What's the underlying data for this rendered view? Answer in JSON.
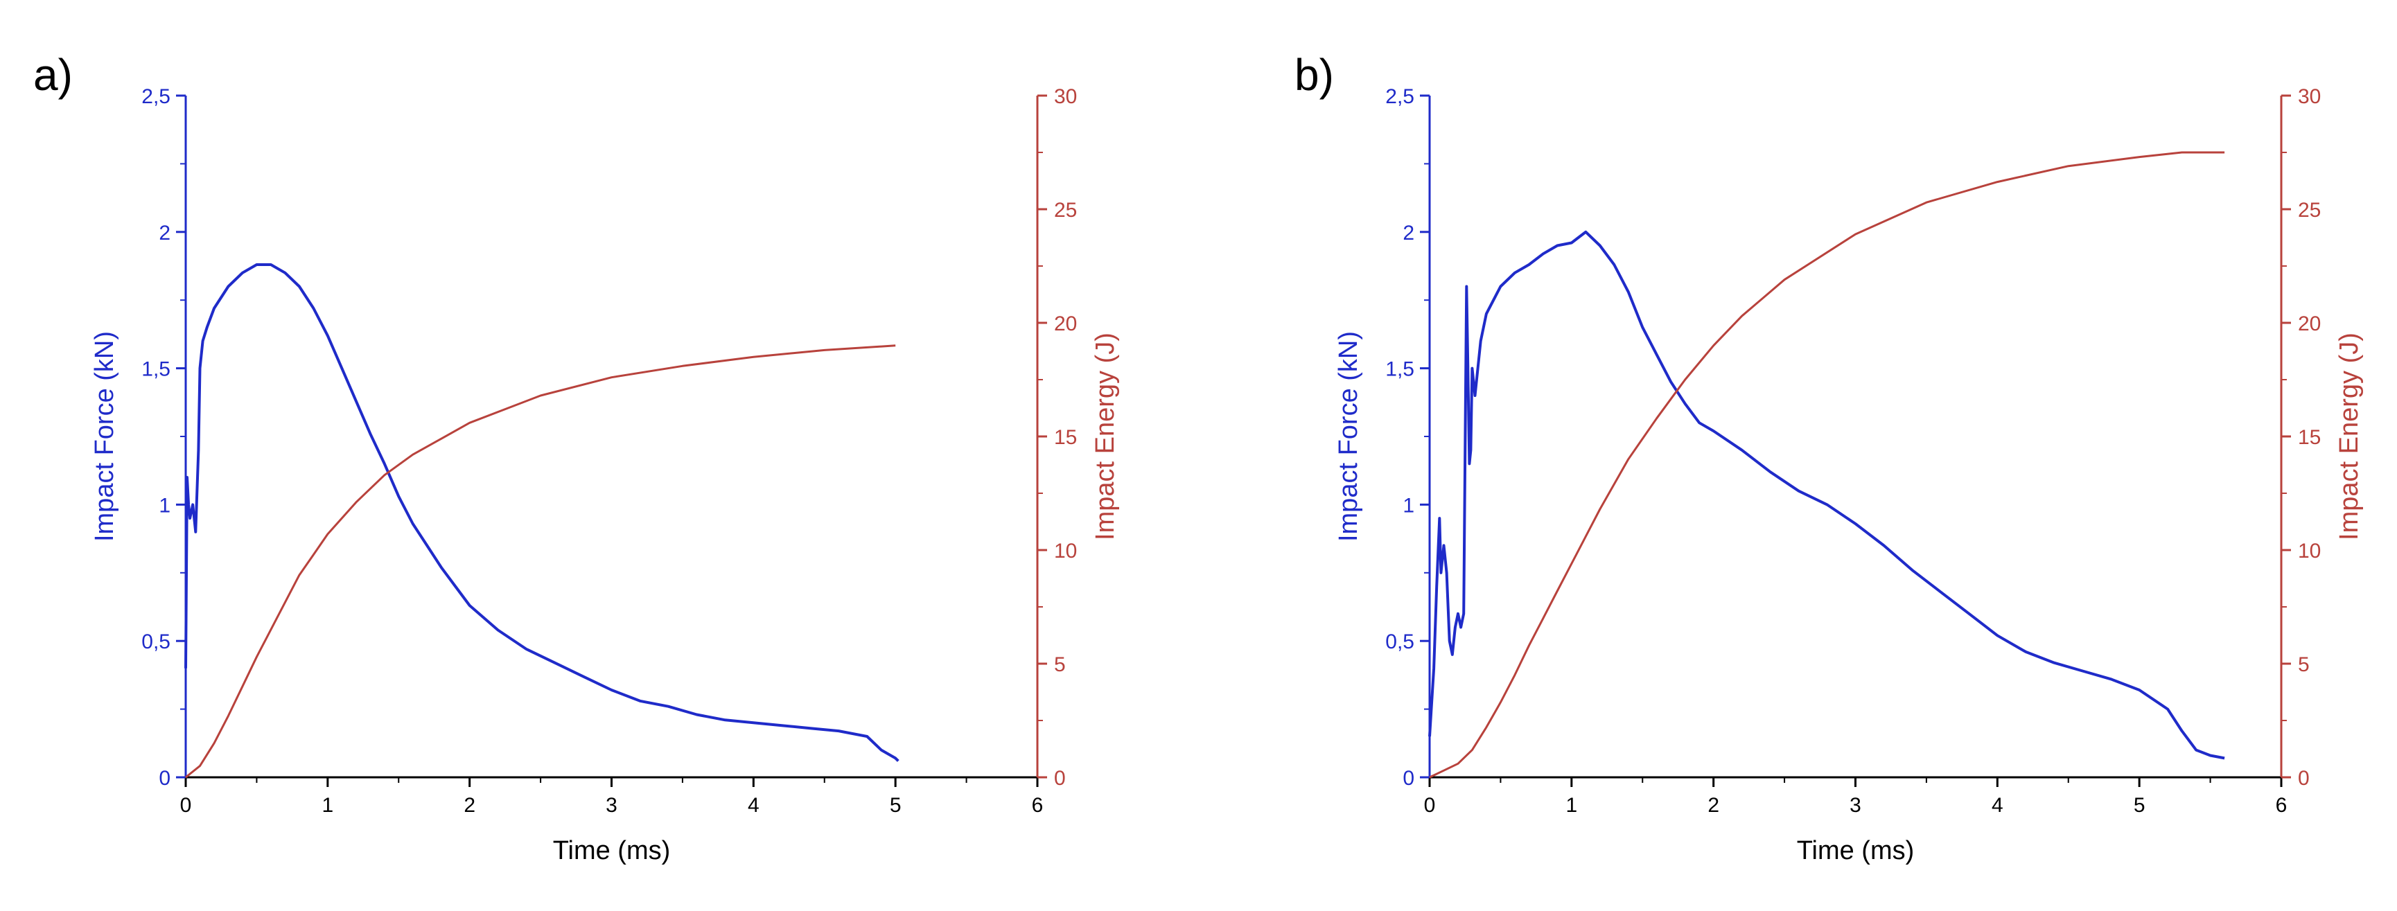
{
  "colors": {
    "force": "#1f2bc9",
    "energy": "#b8423c",
    "axis": "#000000"
  },
  "chart_data": [
    {
      "panel_label": "a)",
      "type": "line",
      "xlabel": "Time (ms)",
      "xlim": [
        0,
        6
      ],
      "x_ticks": [
        "0",
        "1",
        "2",
        "3",
        "4",
        "5",
        "6"
      ],
      "y_left_label": "Impact Force (kN)",
      "y_left_lim": [
        0,
        2.5
      ],
      "y_left_ticks": [
        "0",
        "0,5",
        "1",
        "1,5",
        "2",
        "2,5"
      ],
      "y_right_label": "Impact Energy (J)",
      "y_right_lim": [
        0,
        30
      ],
      "y_right_ticks": [
        "0",
        "5",
        "10",
        "15",
        "20",
        "25",
        "30"
      ],
      "series": [
        {
          "axis": "left",
          "color": "#1f2bc9",
          "x": [
            0,
            0.01,
            0.02,
            0.03,
            0.05,
            0.07,
            0.09,
            0.1,
            0.12,
            0.15,
            0.2,
            0.3,
            0.4,
            0.5,
            0.6,
            0.7,
            0.8,
            0.9,
            1.0,
            1.1,
            1.2,
            1.3,
            1.4,
            1.5,
            1.6,
            1.7,
            1.8,
            1.9,
            2.0,
            2.2,
            2.4,
            2.6,
            2.8,
            3.0,
            3.2,
            3.4,
            3.6,
            3.8,
            4.0,
            4.2,
            4.4,
            4.6,
            4.8,
            4.9,
            5.0,
            5.02
          ],
          "y": [
            0.4,
            1.1,
            1.0,
            0.95,
            1.0,
            0.9,
            1.2,
            1.5,
            1.6,
            1.65,
            1.72,
            1.8,
            1.85,
            1.88,
            1.88,
            1.85,
            1.8,
            1.72,
            1.62,
            1.5,
            1.38,
            1.26,
            1.15,
            1.03,
            0.93,
            0.85,
            0.77,
            0.7,
            0.63,
            0.54,
            0.47,
            0.42,
            0.37,
            0.32,
            0.28,
            0.26,
            0.23,
            0.21,
            0.2,
            0.19,
            0.18,
            0.17,
            0.15,
            0.1,
            0.07,
            0.06
          ]
        },
        {
          "axis": "right",
          "color": "#b8423c",
          "x": [
            0,
            0.1,
            0.2,
            0.3,
            0.4,
            0.5,
            0.6,
            0.7,
            0.8,
            0.9,
            1.0,
            1.2,
            1.4,
            1.6,
            1.8,
            2.0,
            2.5,
            3.0,
            3.5,
            4.0,
            4.5,
            5.0
          ],
          "y": [
            0,
            0.5,
            1.5,
            2.7,
            4.0,
            5.3,
            6.5,
            7.7,
            8.9,
            9.8,
            10.7,
            12.1,
            13.3,
            14.2,
            14.9,
            15.6,
            16.8,
            17.6,
            18.1,
            18.5,
            18.8,
            19.0
          ]
        }
      ]
    },
    {
      "panel_label": "b)",
      "type": "line",
      "xlabel": "Time (ms)",
      "xlim": [
        0,
        6
      ],
      "x_ticks": [
        "0",
        "1",
        "2",
        "3",
        "4",
        "5",
        "6"
      ],
      "y_left_label": "Impact Force (kN)",
      "y_left_lim": [
        0,
        2.5
      ],
      "y_left_ticks": [
        "0",
        "0,5",
        "1",
        "1,5",
        "2",
        "2,5"
      ],
      "y_right_label": "Impact Energy (J)",
      "y_right_lim": [
        0,
        30
      ],
      "y_right_ticks": [
        "0",
        "5",
        "10",
        "15",
        "20",
        "25",
        "30"
      ],
      "series": [
        {
          "axis": "left",
          "color": "#1f2bc9",
          "x": [
            0,
            0.03,
            0.05,
            0.07,
            0.08,
            0.1,
            0.12,
            0.14,
            0.16,
            0.18,
            0.2,
            0.22,
            0.24,
            0.26,
            0.27,
            0.28,
            0.29,
            0.3,
            0.32,
            0.34,
            0.36,
            0.4,
            0.5,
            0.6,
            0.7,
            0.8,
            0.9,
            1.0,
            1.1,
            1.2,
            1.3,
            1.4,
            1.5,
            1.6,
            1.7,
            1.8,
            1.9,
            2.0,
            2.2,
            2.4,
            2.6,
            2.8,
            3.0,
            3.2,
            3.4,
            3.6,
            3.8,
            4.0,
            4.2,
            4.4,
            4.6,
            4.8,
            5.0,
            5.2,
            5.3,
            5.4,
            5.5,
            5.6
          ],
          "y": [
            0.15,
            0.4,
            0.7,
            0.95,
            0.75,
            0.85,
            0.75,
            0.5,
            0.45,
            0.55,
            0.6,
            0.55,
            0.6,
            1.8,
            1.5,
            1.15,
            1.2,
            1.5,
            1.4,
            1.5,
            1.6,
            1.7,
            1.8,
            1.85,
            1.88,
            1.92,
            1.95,
            1.96,
            2.0,
            1.95,
            1.88,
            1.78,
            1.65,
            1.55,
            1.45,
            1.37,
            1.3,
            1.27,
            1.2,
            1.12,
            1.05,
            1.0,
            0.93,
            0.85,
            0.76,
            0.68,
            0.6,
            0.52,
            0.46,
            0.42,
            0.39,
            0.36,
            0.32,
            0.25,
            0.17,
            0.1,
            0.08,
            0.07
          ]
        },
        {
          "axis": "right",
          "color": "#b8423c",
          "x": [
            0,
            0.1,
            0.2,
            0.3,
            0.4,
            0.5,
            0.6,
            0.7,
            0.8,
            0.9,
            1.0,
            1.2,
            1.4,
            1.6,
            1.8,
            2.0,
            2.2,
            2.5,
            3.0,
            3.5,
            4.0,
            4.5,
            5.0,
            5.3,
            5.6
          ],
          "y": [
            0,
            0.3,
            0.6,
            1.2,
            2.2,
            3.3,
            4.5,
            5.8,
            7.0,
            8.2,
            9.4,
            11.8,
            14.0,
            15.8,
            17.5,
            19.0,
            20.3,
            21.9,
            23.9,
            25.3,
            26.2,
            26.9,
            27.3,
            27.5,
            27.5
          ]
        }
      ]
    }
  ]
}
